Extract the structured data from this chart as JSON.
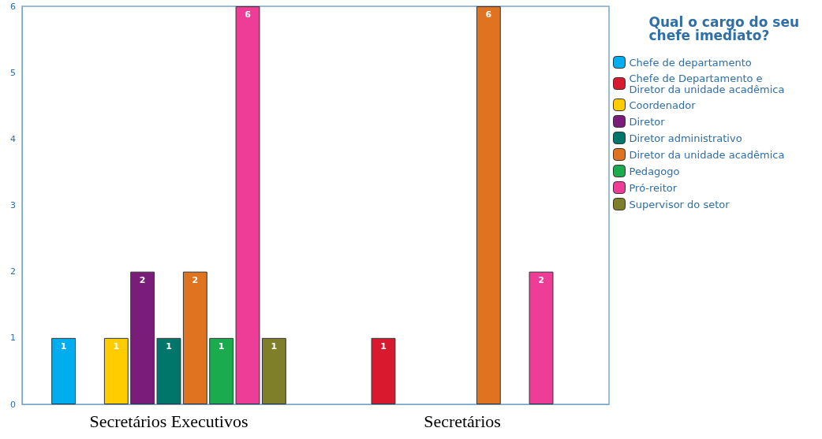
{
  "chart_data": {
    "type": "bar",
    "legend_title": "Qual o cargo do seu chefe imediato?",
    "categories": [
      "Secretários Executivos",
      "Secretários"
    ],
    "series": [
      {
        "name": "Chefe de departamento",
        "color": "#00aeef",
        "values": [
          1,
          null
        ]
      },
      {
        "name": "Chefe de Departamento e Diretor da unidade acadêmica",
        "color": "#d91a2e",
        "values": [
          null,
          1
        ]
      },
      {
        "name": "Coordenador",
        "color": "#ffcc00",
        "values": [
          1,
          null
        ]
      },
      {
        "name": "Diretor",
        "color": "#7a1c7a",
        "values": [
          2,
          null
        ]
      },
      {
        "name": "Diretor administrativo",
        "color": "#00766a",
        "values": [
          1,
          null
        ]
      },
      {
        "name": "Diretor da unidade acadêmica",
        "color": "#e0731f",
        "values": [
          2,
          6
        ]
      },
      {
        "name": "Pedagogo",
        "color": "#1aab4e",
        "values": [
          1,
          null
        ]
      },
      {
        "name": "Pró-reitor",
        "color": "#ed3d96",
        "values": [
          6,
          2
        ]
      },
      {
        "name": "Supervisor do setor",
        "color": "#7f7f2a",
        "values": [
          1,
          null
        ]
      }
    ],
    "ylim": [
      0,
      6
    ],
    "yticks": [
      0,
      1,
      2,
      3,
      4,
      5,
      6
    ],
    "grid": false,
    "legend": "right",
    "data_labels": true
  }
}
